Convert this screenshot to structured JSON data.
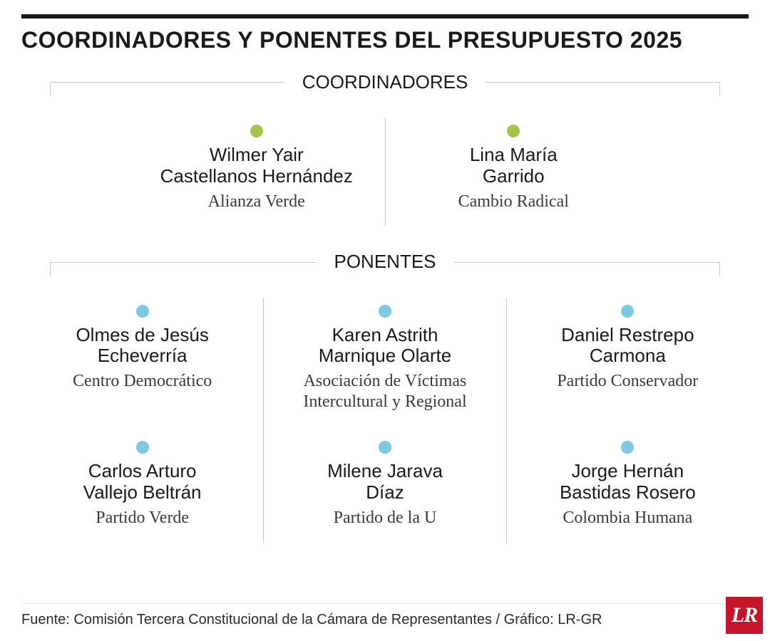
{
  "title": "COORDINADORES Y PONENTES DEL PRESUPUESTO 2025",
  "colors": {
    "rule": "#1a1a1a",
    "divider": "#c8c8c8",
    "coord_dot": "#a6c34c",
    "ponente_dot": "#7ec8e3",
    "logo_bg": "#c4152b",
    "logo_fg": "#ffffff",
    "text_primary": "#1a1a1a",
    "text_secondary": "#3a3a3a"
  },
  "typography": {
    "title_fontsize": 32,
    "section_fontsize": 26,
    "name_fontsize": 26,
    "party_fontsize": 24,
    "source_fontsize": 20
  },
  "sections": {
    "coordinadores": {
      "label": "COORDINADORES",
      "dot_color": "#a6c34c",
      "people": [
        {
          "name_line1": "Wilmer Yair",
          "name_line2": "Castellanos Hernández",
          "party": "Alianza Verde"
        },
        {
          "name_line1": "Lina María",
          "name_line2": "Garrido",
          "party": "Cambio Radical"
        }
      ]
    },
    "ponentes": {
      "label": "PONENTES",
      "dot_color": "#7ec8e3",
      "rows": [
        [
          {
            "name_line1": "Olmes de Jesús",
            "name_line2": "Echeverría",
            "party_line1": "Centro Democrático",
            "party_line2": ""
          },
          {
            "name_line1": "Karen Astrith",
            "name_line2": "Marnique Olarte",
            "party_line1": "Asociación de Víctimas",
            "party_line2": "Intercultural y Regional"
          },
          {
            "name_line1": "Daniel Restrepo",
            "name_line2": "Carmona",
            "party_line1": "Partido Conservador",
            "party_line2": ""
          }
        ],
        [
          {
            "name_line1": "Carlos Arturo",
            "name_line2": "Vallejo Beltrán",
            "party_line1": "Partido Verde",
            "party_line2": ""
          },
          {
            "name_line1": "Milene Jarava",
            "name_line2": "Díaz",
            "party_line1": "Partido de la U",
            "party_line2": ""
          },
          {
            "name_line1": "Jorge Hernán",
            "name_line2": "Bastidas Rosero",
            "party_line1": "Colombia Humana",
            "party_line2": ""
          }
        ]
      ]
    }
  },
  "footer": {
    "source": "Fuente: Comisión Tercera Constitucional de la Cámara de Representantes / Gráfico: LR-GR",
    "logo_text": "LR"
  }
}
